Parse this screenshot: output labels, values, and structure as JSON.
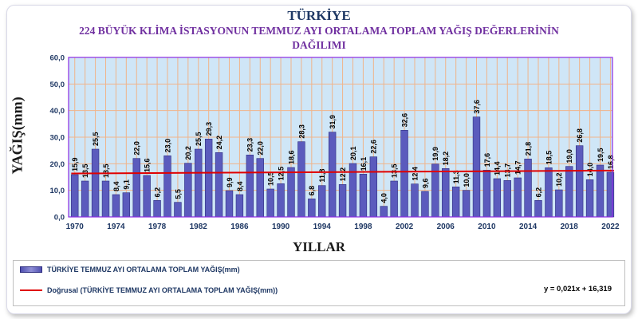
{
  "chart_data": {
    "type": "bar",
    "title": "TÜRKİYE",
    "subtitle_line1": "224 BÜYÜK KLİMA İSTASYONUN TEMMUZ AYI ORTALAMA TOPLAM YAĞIŞ DEĞERLERİNİN",
    "subtitle_line2": "DAĞILIMI",
    "xlabel": "YILLAR",
    "ylabel": "YAĞIŞ(mm)",
    "ylim": [
      0,
      60
    ],
    "yticks": [
      "0,0",
      "10,0",
      "20,0",
      "30,0",
      "40,0",
      "50,0",
      "60,0"
    ],
    "xticks": [
      "1970",
      "1974",
      "1978",
      "1982",
      "1986",
      "1990",
      "1994",
      "1998",
      "2002",
      "2006",
      "2010",
      "2014",
      "2018",
      "2022"
    ],
    "categories": [
      1970,
      1971,
      1972,
      1973,
      1974,
      1975,
      1976,
      1977,
      1978,
      1979,
      1980,
      1981,
      1982,
      1983,
      1984,
      1985,
      1986,
      1987,
      1988,
      1989,
      1990,
      1991,
      1992,
      1993,
      1994,
      1995,
      1996,
      1997,
      1998,
      1999,
      2000,
      2001,
      2002,
      2003,
      2004,
      2005,
      2006,
      2007,
      2008,
      2009,
      2010,
      2011,
      2012,
      2013,
      2014,
      2015,
      2016,
      2017,
      2018,
      2019,
      2020,
      2021,
      2022
    ],
    "values": [
      15.9,
      13.5,
      25.5,
      13.5,
      8.4,
      9.1,
      22.0,
      15.6,
      6.2,
      23.0,
      5.5,
      20.2,
      25.5,
      29.3,
      24.2,
      9.9,
      8.4,
      23.3,
      22.0,
      10.5,
      12.5,
      18.6,
      28.3,
      6.8,
      11.8,
      31.9,
      12.2,
      20.1,
      16.1,
      22.6,
      4.0,
      13.5,
      32.6,
      12.4,
      9.6,
      19.9,
      18.2,
      11.3,
      10.0,
      37.6,
      17.6,
      14.4,
      13.7,
      14.7,
      21.8,
      6.2,
      18.5,
      10.2,
      19.0,
      26.8,
      14.0,
      19.5,
      16.8
    ],
    "value_labels": [
      "15,9",
      "13,5",
      "25,5",
      "13,5",
      "8,4",
      "9,1",
      "22,0",
      "15,6",
      "6,2",
      "23,0",
      "5,5",
      "20,2",
      "25,5",
      "29,3",
      "24,2",
      "9,9",
      "8,4",
      "23,3",
      "22,0",
      "10,5",
      "12,5",
      "18,6",
      "28,3",
      "6,8",
      "11,8",
      "31,9",
      "12,2",
      "20,1",
      "16,1",
      "22,6",
      "4,0",
      "13,5",
      "32,6",
      "12,4",
      "9,6",
      "19,9",
      "18,2",
      "11,3",
      "10,0",
      "37,6",
      "17,6",
      "14,4",
      "13,7",
      "14,7",
      "21,8",
      "6,2",
      "18,5",
      "10,2",
      "19,0",
      "26,8",
      "14,0",
      "19,5",
      "16,8"
    ],
    "series_name": "TÜRKİYE TEMMUZ AYI ORTALAMA TOPLAM YAĞIŞ(mm)",
    "trend_name": "Doğrusal (TÜRKİYE TEMMUZ AYI ORTALAMA TOPLAM YAĞIŞ(mm))",
    "trend_equation": "y = 0,021x + 16,319",
    "trend_slope": 0.021,
    "trend_intercept": 16.319,
    "grid": true,
    "legend_position": "bottom",
    "colors": {
      "bar": "#5b5bbd",
      "bar_edge": "#2e2e80",
      "trend": "#e00000",
      "plot_bg": "#cfe6f7",
      "grid": "#f0b48a",
      "plot_border": "#8a2be2",
      "tick_text": "#1f3864"
    }
  }
}
